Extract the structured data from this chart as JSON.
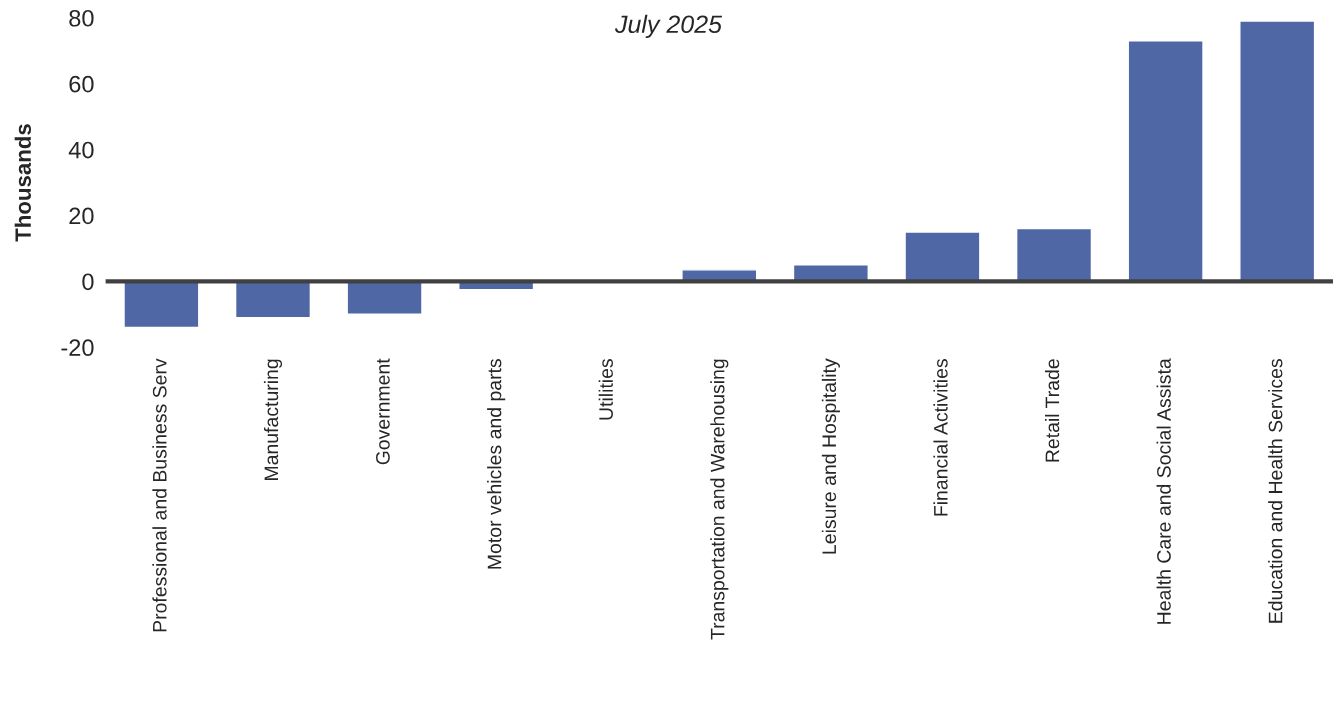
{
  "chart_data": {
    "type": "bar",
    "subtitle": "July 2025",
    "ylabel": "Thousands",
    "categories": [
      "Professional and Business Serv",
      "Manufacturing",
      "Government",
      "Motor vehicles and parts",
      "Utilities",
      "Transportation and Warehousing",
      "Leisure and Hospitality",
      "Financial Activities",
      "Retail Trade",
      "Health Care and Social Assista",
      "Education and Health Services"
    ],
    "values": [
      -14,
      -11,
      -10,
      -2.5,
      0.2,
      3.5,
      5,
      15,
      16,
      73,
      79
    ],
    "color": "#4f67a4",
    "ylim": [
      -20,
      80
    ],
    "yticks": [
      -20,
      0,
      20,
      40,
      60,
      80
    ],
    "ref_lines": [
      {
        "axis": "y",
        "value": 0,
        "color": "#404040"
      }
    ]
  }
}
